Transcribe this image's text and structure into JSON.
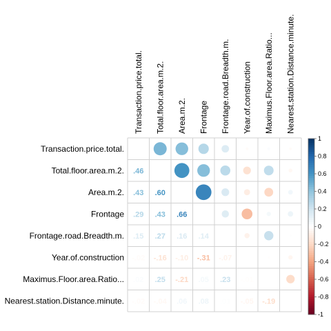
{
  "chart_data": {
    "type": "heatmap",
    "variables": [
      "Transaction.price.total.",
      "Total.floor.area.m.2.",
      "Area.m.2.",
      "Frontage",
      "Frontage.road.Breadth.m.",
      "Year.of.construction",
      "Maximus.Floor.area.Ratio...",
      "Nearest.station.Distance.minute."
    ],
    "matrix": [
      [
        1.0,
        0.46,
        0.43,
        0.29,
        0.15,
        -0.02,
        0.02,
        -0.02
      ],
      [
        0.46,
        1.0,
        0.6,
        0.43,
        0.27,
        -0.16,
        0.25,
        -0.04
      ],
      [
        0.43,
        0.6,
        1.0,
        0.66,
        0.16,
        -0.1,
        -0.21,
        0.06
      ],
      [
        0.29,
        0.43,
        0.66,
        1.0,
        0.14,
        -0.31,
        0.05,
        0.08
      ],
      [
        0.15,
        0.27,
        0.16,
        0.14,
        1.0,
        -0.07,
        0.23,
        0.01
      ],
      [
        -0.02,
        -0.16,
        -0.1,
        -0.31,
        -0.07,
        1.0,
        -0.01,
        -0.05
      ],
      [
        0.02,
        0.25,
        -0.21,
        0.05,
        0.23,
        -0.01,
        1.0,
        -0.19
      ],
      [
        -0.02,
        -0.04,
        0.06,
        0.08,
        0.01,
        -0.05,
        -0.19,
        1.0
      ]
    ],
    "lower": "number",
    "upper": "circle",
    "colorbar": {
      "ticks": [
        "1",
        "0.8",
        "0.6",
        "0.4",
        "0.2",
        "0",
        "-0.2",
        "-0.4",
        "-0.6",
        "-0.8",
        "-1"
      ],
      "range": [
        -1,
        1
      ],
      "colors": [
        "#67001F",
        "#B2182B",
        "#D6604D",
        "#F4A582",
        "#FDDBC7",
        "#FFFFFF",
        "#D1E5F0",
        "#92C5DE",
        "#4393C3",
        "#2166AC",
        "#053061"
      ]
    }
  }
}
